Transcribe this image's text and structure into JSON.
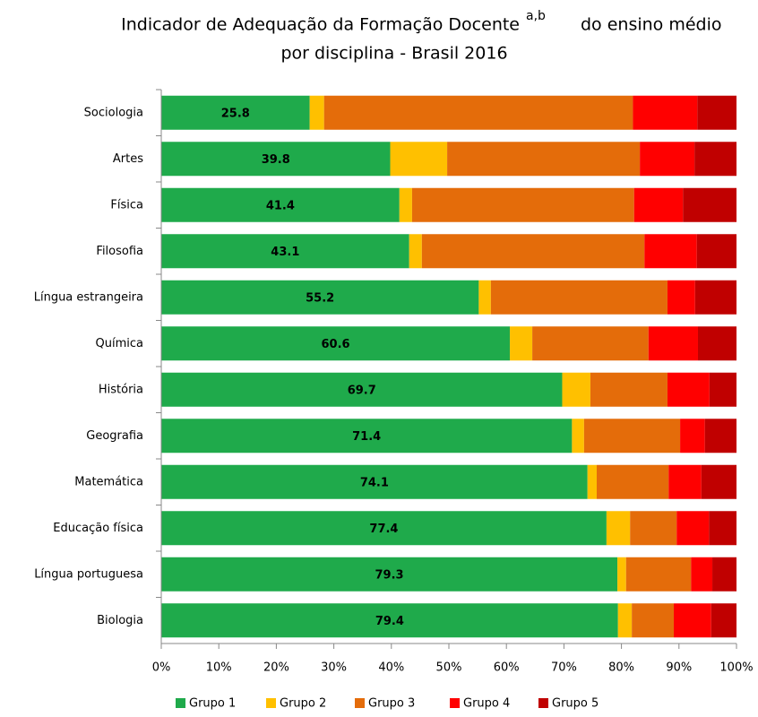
{
  "chart_data": {
    "type": "stacked-barh",
    "title": [
      "Indicador de Adequação da Formação Docente",
      "do ensino médio",
      "por disciplina - Brasil 2016"
    ],
    "title_superscript": "a,b",
    "categories": [
      "Sociologia",
      "Artes",
      "Física",
      "Filosofia",
      "Língua estrangeira",
      "Química",
      "História",
      "Geografia",
      "Matemática",
      "Educação física",
      "Língua portuguesa",
      "Biologia"
    ],
    "series": [
      {
        "name": "Grupo 1",
        "color": "#1faa4b",
        "show_labels": true,
        "values": [
          25.8,
          39.8,
          41.4,
          43.1,
          55.2,
          60.6,
          69.7,
          71.4,
          74.1,
          77.4,
          79.3,
          79.4
        ]
      },
      {
        "name": "Grupo 2",
        "color": "#ffc000",
        "values": [
          2.5,
          9.9,
          2.2,
          2.2,
          2.1,
          3.9,
          4.9,
          2.1,
          1.6,
          4.1,
          1.5,
          2.4
        ]
      },
      {
        "name": "Grupo 3",
        "color": "#e46c0a",
        "values": [
          53.7,
          33.5,
          38.6,
          38.7,
          30.7,
          20.2,
          13.4,
          16.7,
          12.5,
          8.1,
          11.3,
          7.3
        ]
      },
      {
        "name": "Grupo 4",
        "color": "#ff0000",
        "values": [
          11.2,
          9.5,
          8.5,
          9.1,
          4.8,
          8.6,
          7.3,
          4.3,
          5.7,
          5.6,
          3.7,
          6.5
        ]
      },
      {
        "name": "Grupo 5",
        "color": "#c00000",
        "values": [
          6.8,
          7.3,
          9.3,
          6.9,
          7.2,
          6.7,
          4.7,
          5.5,
          6.1,
          4.8,
          4.2,
          4.4
        ]
      }
    ],
    "xlim": [
      0,
      100
    ],
    "xticks": [
      {
        "value": 0,
        "label": "0%"
      },
      {
        "value": 10,
        "label": "10%"
      },
      {
        "value": 20,
        "label": "20%"
      },
      {
        "value": 30,
        "label": "30%"
      },
      {
        "value": 40,
        "label": "40%"
      },
      {
        "value": 50,
        "label": "50%"
      },
      {
        "value": 60,
        "label": "60%"
      },
      {
        "value": 70,
        "label": "70%"
      },
      {
        "value": 80,
        "label": "80%"
      },
      {
        "value": 90,
        "label": "90%"
      },
      {
        "value": 100,
        "label": "100%"
      }
    ],
    "grid": false,
    "legend": "bottom"
  }
}
